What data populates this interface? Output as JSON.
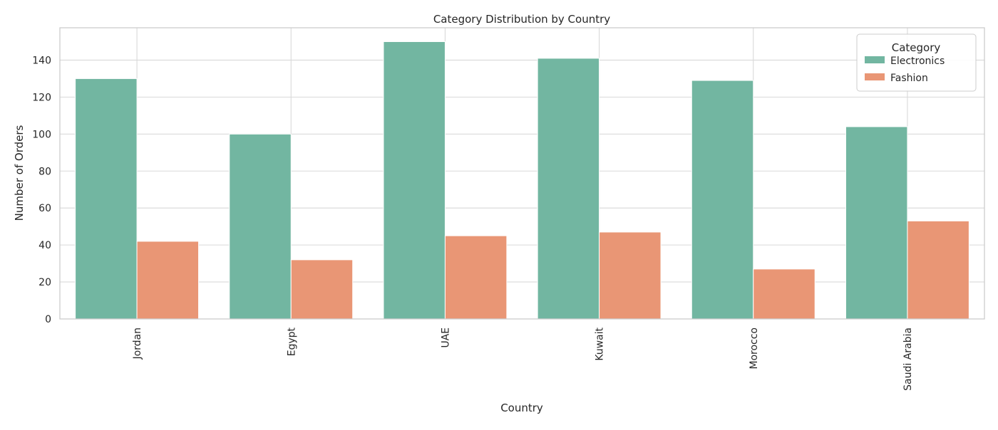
{
  "chart_data": {
    "type": "bar",
    "title": "Category Distribution by Country",
    "xlabel": "Country",
    "ylabel": "Number of Orders",
    "categories": [
      "Jordan",
      "Egypt",
      "UAE",
      "Kuwait",
      "Morocco",
      "Saudi Arabia"
    ],
    "series": [
      {
        "name": "Electronics",
        "values": [
          130,
          100,
          150,
          141,
          129,
          104
        ],
        "color": "#72b6a1"
      },
      {
        "name": "Fashion",
        "values": [
          42,
          32,
          45,
          47,
          27,
          53
        ],
        "color": "#e99675"
      }
    ],
    "ylim": [
      0,
      157.5
    ],
    "yticks": [
      0,
      20,
      40,
      60,
      80,
      100,
      120,
      140
    ],
    "grid": true,
    "legend": {
      "title": "Category",
      "placement": "top-right"
    }
  }
}
